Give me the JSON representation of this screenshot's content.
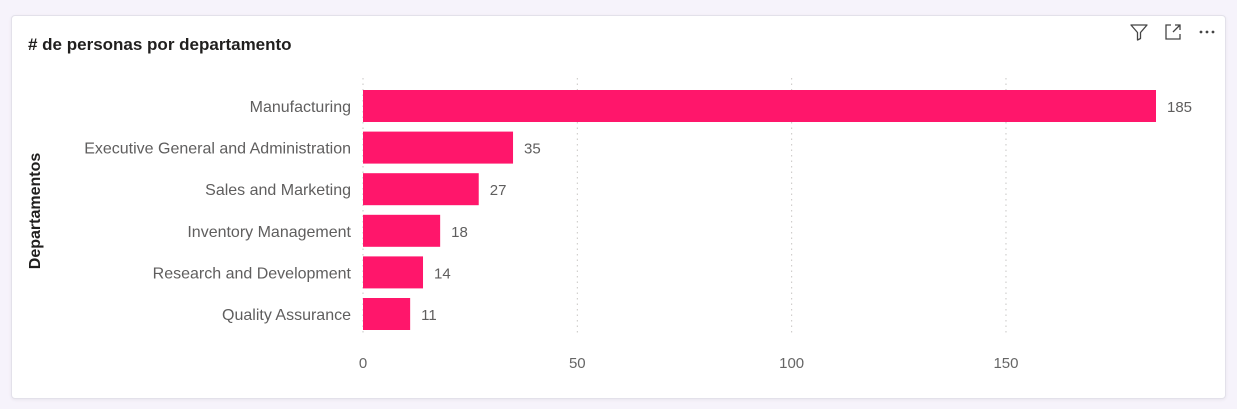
{
  "visual": {
    "title": "# de personas por departamento",
    "toolbar": {
      "filter_icon": "filter-icon",
      "focus_icon": "focus-mode-icon",
      "more_icon": "more-options-icon"
    }
  },
  "colors": {
    "bar": "#ff166b",
    "gridline": "#c8c6c4",
    "text": "#5f5e5e"
  },
  "chart_data": {
    "type": "bar",
    "orientation": "horizontal",
    "title": "# de personas por departamento",
    "ylabel": "Departamentos",
    "xlabel": "",
    "categories": [
      "Manufacturing",
      "Executive General and Administration",
      "Sales and Marketing",
      "Inventory Management",
      "Research and Development",
      "Quality Assurance"
    ],
    "values": [
      185,
      35,
      27,
      18,
      14,
      11
    ],
    "xlim": [
      0,
      185
    ],
    "xticks": [
      0,
      50,
      100,
      150
    ],
    "grid": true,
    "data_labels": true
  }
}
